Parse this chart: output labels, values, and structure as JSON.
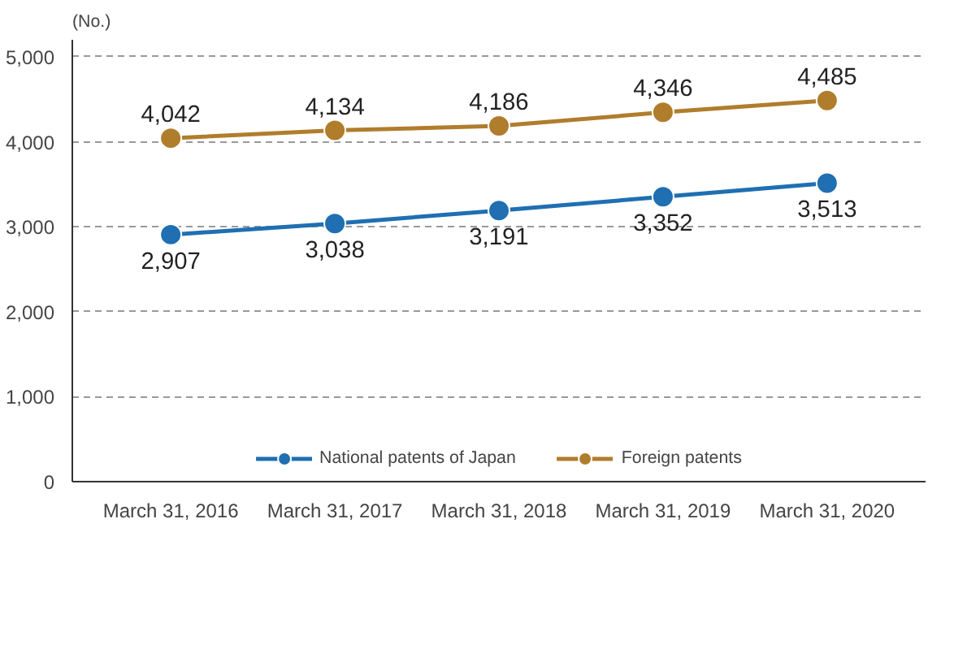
{
  "chart_data": {
    "type": "line",
    "ylabel": "(No.)",
    "categories": [
      "March 31, 2016",
      "March 31, 2017",
      "March 31, 2018",
      "March 31, 2019",
      "March 31, 2020"
    ],
    "series": [
      {
        "name": "National patents of Japan",
        "color": "#1f6fb2",
        "values": [
          2907,
          3038,
          3191,
          3352,
          3513
        ],
        "value_labels": [
          "2,907",
          "3,038",
          "3,191",
          "3,352",
          "3,513"
        ]
      },
      {
        "name": "Foreign patents",
        "color": "#b07d2c",
        "values": [
          4042,
          4134,
          4186,
          4346,
          4485
        ],
        "value_labels": [
          "4,042",
          "4,134",
          "4,186",
          "4,346",
          "4,485"
        ]
      }
    ],
    "ylim": [
      0,
      5200
    ],
    "yticks": [
      0,
      {
        "value": 1000,
        "label": "1,000"
      },
      {
        "value": 2000,
        "label": "2,000"
      },
      {
        "value": 3000,
        "label": "3,000"
      },
      {
        "value": 4000,
        "label": "4,000"
      },
      {
        "value": 5000,
        "label": "5,000"
      }
    ],
    "grid": "y",
    "legend": "bottom",
    "marker": "circle",
    "line_style": "solid"
  }
}
